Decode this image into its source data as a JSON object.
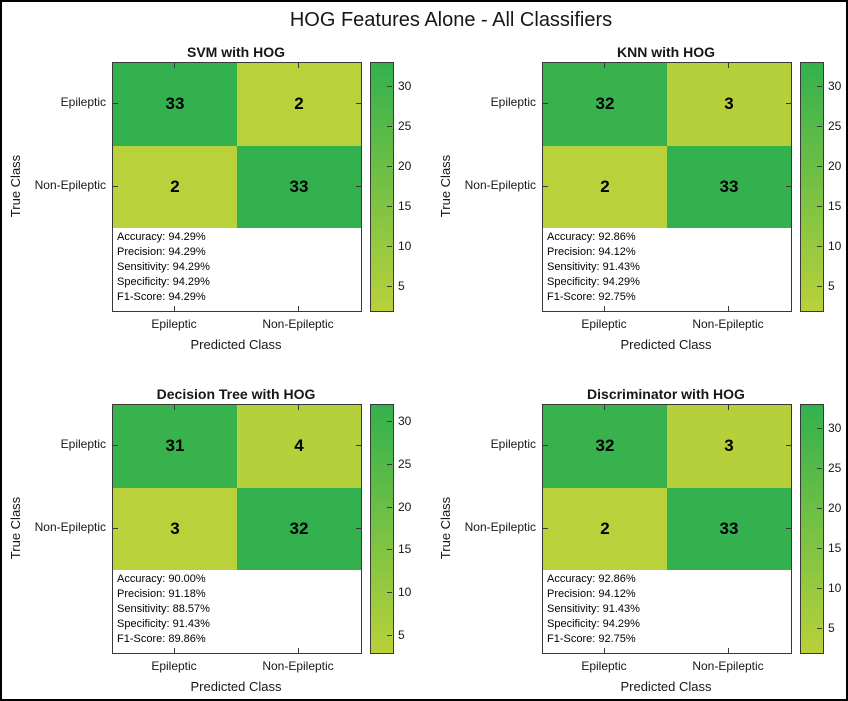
{
  "figure": {
    "title": "HOG Features Alone - All Classifiers"
  },
  "style": {
    "color_low": "#b9d13a",
    "color_high": "#33b14e"
  },
  "chart_data": [
    {
      "type": "heatmap",
      "title": "SVM with HOG",
      "xlabel": "Predicted Class",
      "ylabel": "True Class",
      "x_categories": [
        "Epileptic",
        "Non-Epileptic"
      ],
      "y_categories": [
        "Epileptic",
        "Non-Epileptic"
      ],
      "values": [
        [
          33,
          2
        ],
        [
          2,
          33
        ]
      ],
      "value_range": [
        2,
        33
      ],
      "colorbar_ticks": [
        5,
        10,
        15,
        20,
        25,
        30
      ],
      "annotations": [
        "Accuracy: 94.29%",
        "Precision: 94.29%",
        "Sensitivity: 94.29%",
        "Specificity: 94.29%",
        "F1-Score: 94.29%"
      ]
    },
    {
      "type": "heatmap",
      "title": "KNN with HOG",
      "xlabel": "Predicted Class",
      "ylabel": "True Class",
      "x_categories": [
        "Epileptic",
        "Non-Epileptic"
      ],
      "y_categories": [
        "Epileptic",
        "Non-Epileptic"
      ],
      "values": [
        [
          32,
          3
        ],
        [
          2,
          33
        ]
      ],
      "value_range": [
        2,
        33
      ],
      "colorbar_ticks": [
        5,
        10,
        15,
        20,
        25,
        30
      ],
      "annotations": [
        "Accuracy: 92.86%",
        "Precision: 94.12%",
        "Sensitivity: 91.43%",
        "Specificity: 94.29%",
        "F1-Score: 92.75%"
      ]
    },
    {
      "type": "heatmap",
      "title": "Decision Tree with HOG",
      "xlabel": "Predicted Class",
      "ylabel": "True Class",
      "x_categories": [
        "Epileptic",
        "Non-Epileptic"
      ],
      "y_categories": [
        "Epileptic",
        "Non-Epileptic"
      ],
      "values": [
        [
          31,
          4
        ],
        [
          3,
          32
        ]
      ],
      "value_range": [
        3,
        32
      ],
      "colorbar_ticks": [
        5,
        10,
        15,
        20,
        25,
        30
      ],
      "annotations": [
        "Accuracy: 90.00%",
        "Precision: 91.18%",
        "Sensitivity: 88.57%",
        "Specificity: 91.43%",
        "F1-Score: 89.86%"
      ]
    },
    {
      "type": "heatmap",
      "title": "Discriminator with HOG",
      "xlabel": "Predicted Class",
      "ylabel": "True Class",
      "x_categories": [
        "Epileptic",
        "Non-Epileptic"
      ],
      "y_categories": [
        "Epileptic",
        "Non-Epileptic"
      ],
      "values": [
        [
          32,
          3
        ],
        [
          2,
          33
        ]
      ],
      "value_range": [
        2,
        33
      ],
      "colorbar_ticks": [
        5,
        10,
        15,
        20,
        25,
        30
      ],
      "annotations": [
        "Accuracy: 92.86%",
        "Precision: 94.12%",
        "Sensitivity: 91.43%",
        "Specificity: 94.29%",
        "F1-Score: 92.75%"
      ]
    }
  ]
}
